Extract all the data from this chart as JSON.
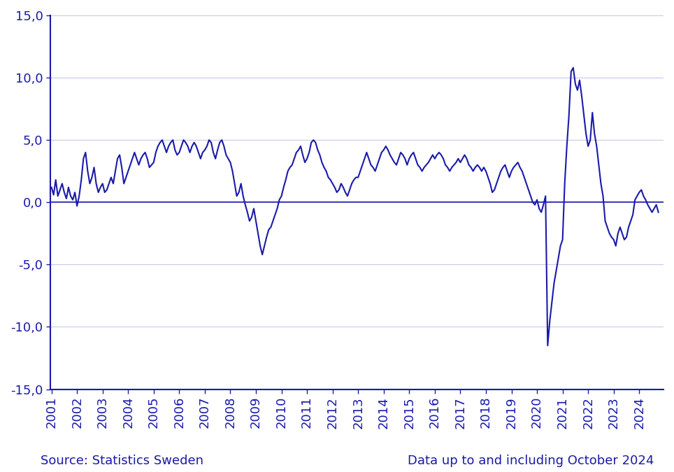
{
  "title": "",
  "source_text": "Source: Statistics Sweden",
  "data_note": "Data up to and including October 2024",
  "line_color": "#1a1aaa",
  "background_color": "#ffffff",
  "grid_color": "#c8c8e8",
  "axis_color": "#1a1aaa",
  "text_color": "#1a1aaa",
  "ylim": [
    -15,
    15
  ],
  "yticks": [
    -15,
    -10,
    -5,
    0,
    5,
    10,
    15
  ],
  "ytick_labels": [
    "-15,0",
    "-10,0",
    "-5,0",
    "0,0",
    "5,0",
    "10,0",
    "15,0"
  ],
  "years": [
    2001,
    2002,
    2003,
    2004,
    2005,
    2006,
    2007,
    2008,
    2009,
    2010,
    2011,
    2012,
    2013,
    2014,
    2015,
    2016,
    2017,
    2018,
    2019,
    2020,
    2021,
    2022,
    2023,
    2024
  ],
  "monthly_data": [
    1.2,
    0.6,
    1.8,
    0.5,
    1.0,
    1.5,
    0.8,
    0.3,
    1.2,
    0.5,
    0.2,
    0.8,
    -0.3,
    0.5,
    1.8,
    3.5,
    4.0,
    2.5,
    1.5,
    2.0,
    2.8,
    1.5,
    0.8,
    1.2,
    1.5,
    0.8,
    1.0,
    1.5,
    2.0,
    1.5,
    2.5,
    3.5,
    3.8,
    2.8,
    1.5,
    2.0,
    2.5,
    3.0,
    3.5,
    4.0,
    3.5,
    3.0,
    3.5,
    3.8,
    4.0,
    3.5,
    2.8,
    3.0,
    3.2,
    4.0,
    4.5,
    4.8,
    5.0,
    4.5,
    4.0,
    4.5,
    4.8,
    5.0,
    4.2,
    3.8,
    4.0,
    4.5,
    5.0,
    4.8,
    4.5,
    4.0,
    4.5,
    4.8,
    4.5,
    4.0,
    3.5,
    4.0,
    4.2,
    4.5,
    5.0,
    4.8,
    4.0,
    3.5,
    4.2,
    4.8,
    5.0,
    4.5,
    3.8,
    3.5,
    3.2,
    2.5,
    1.5,
    0.5,
    0.8,
    1.5,
    0.5,
    -0.2,
    -0.8,
    -1.5,
    -1.2,
    -0.5,
    -1.5,
    -2.5,
    -3.5,
    -4.2,
    -3.5,
    -2.8,
    -2.2,
    -2.0,
    -1.5,
    -1.0,
    -0.5,
    0.2,
    0.5,
    1.2,
    1.8,
    2.5,
    2.8,
    3.0,
    3.5,
    4.0,
    4.2,
    4.5,
    3.8,
    3.2,
    3.5,
    4.0,
    4.8,
    5.0,
    4.8,
    4.2,
    3.8,
    3.2,
    2.8,
    2.5,
    2.0,
    1.8,
    1.5,
    1.2,
    0.8,
    1.0,
    1.5,
    1.2,
    0.8,
    0.5,
    1.0,
    1.5,
    1.8,
    2.0,
    2.0,
    2.5,
    3.0,
    3.5,
    4.0,
    3.5,
    3.0,
    2.8,
    2.5,
    3.0,
    3.5,
    4.0,
    4.2,
    4.5,
    4.2,
    3.8,
    3.5,
    3.2,
    3.0,
    3.5,
    4.0,
    3.8,
    3.5,
    3.0,
    3.5,
    3.8,
    4.0,
    3.5,
    3.0,
    2.8,
    2.5,
    2.8,
    3.0,
    3.2,
    3.5,
    3.8,
    3.5,
    3.8,
    4.0,
    3.8,
    3.5,
    3.0,
    2.8,
    2.5,
    2.8,
    3.0,
    3.2,
    3.5,
    3.2,
    3.5,
    3.8,
    3.5,
    3.0,
    2.8,
    2.5,
    2.8,
    3.0,
    2.8,
    2.5,
    2.8,
    2.5,
    2.0,
    1.5,
    0.8,
    1.0,
    1.5,
    2.0,
    2.5,
    2.8,
    3.0,
    2.5,
    2.0,
    2.5,
    2.8,
    3.0,
    3.2,
    2.8,
    2.5,
    2.0,
    1.5,
    1.0,
    0.5,
    0.0,
    -0.2,
    0.2,
    -0.5,
    -0.8,
    -0.2,
    0.5,
    -11.5,
    -9.5,
    -8.0,
    -6.5,
    -5.5,
    -4.5,
    -3.5,
    -3.0,
    1.5,
    4.5,
    7.0,
    10.5,
    10.8,
    9.5,
    9.0,
    9.8,
    8.5,
    7.0,
    5.5,
    4.5,
    5.0,
    7.2,
    5.5,
    4.5,
    3.0,
    1.5,
    0.5,
    -1.5,
    -2.0,
    -2.5,
    -2.8,
    -3.0,
    -3.5,
    -2.5,
    -2.0,
    -2.5,
    -3.0,
    -2.8,
    -2.0,
    -1.5,
    -1.0,
    0.2,
    0.5,
    0.8,
    1.0,
    0.5,
    0.2,
    -0.2,
    -0.5,
    -0.8,
    -0.5,
    -0.2,
    -0.8
  ],
  "font_family": "DejaVu Sans",
  "fontsize_ticks": 13,
  "fontsize_note": 13,
  "line_width": 1.5
}
